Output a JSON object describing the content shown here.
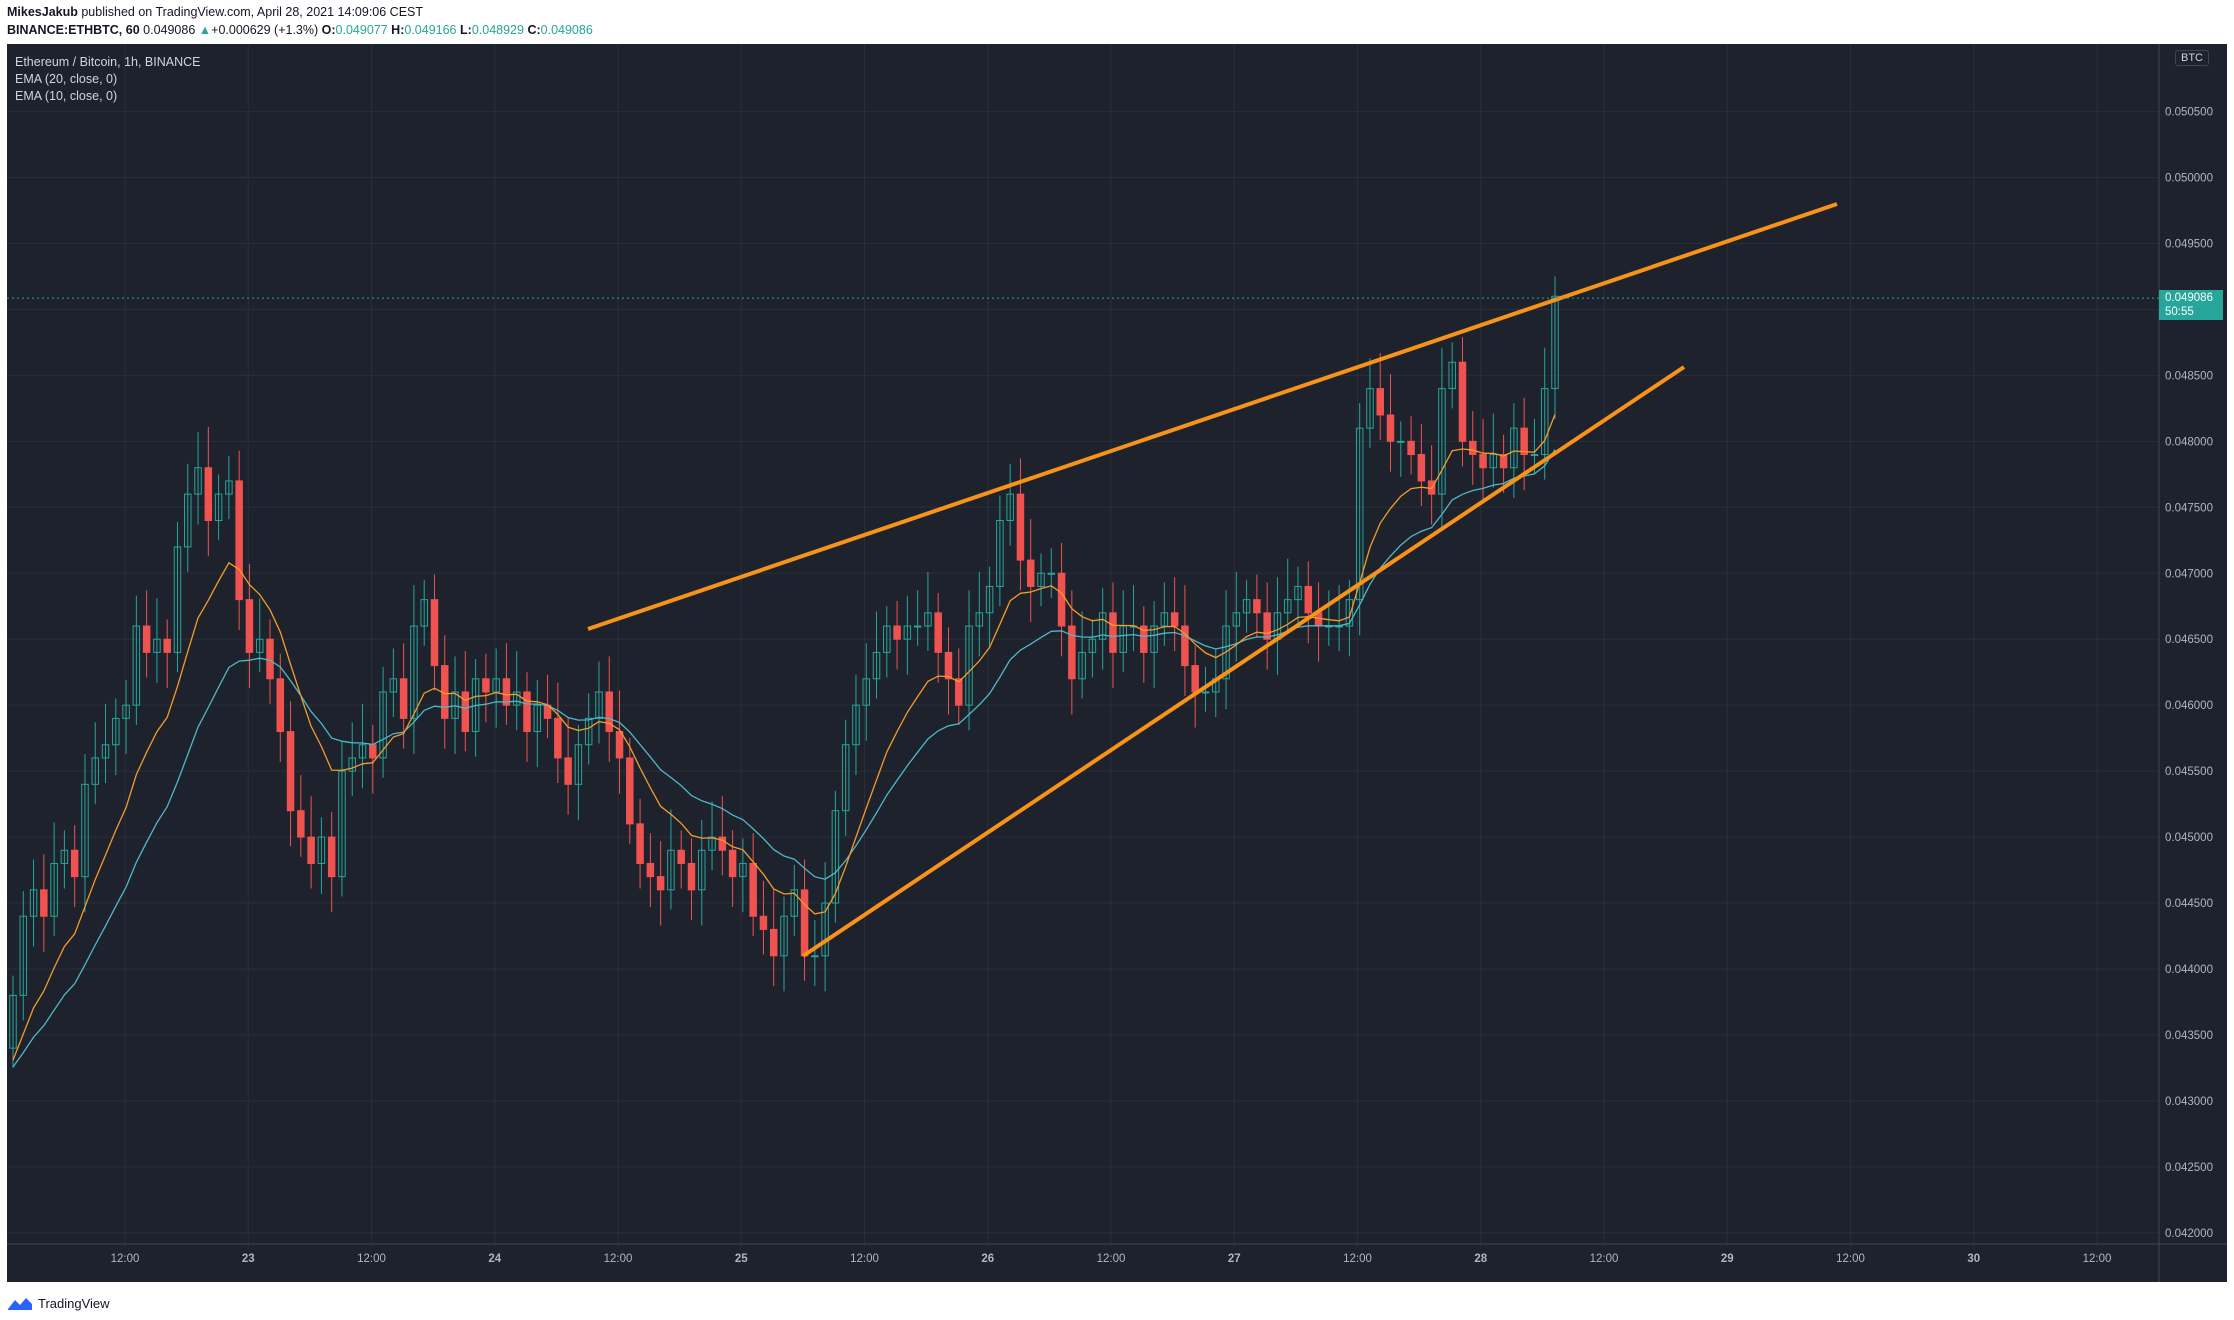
{
  "header": {
    "author": "MikesJakub",
    "published_text": " published on TradingView.com, April 28, 2021 14:09:06 CEST",
    "symbol": "BINANCE:ETHBTC, 60",
    "last": "0.049086",
    "change": "+0.000629 (+1.3%)",
    "o_label": "O:",
    "o_value": "0.049077",
    "h_label": "H:",
    "h_value": "0.049166",
    "l_label": "L:",
    "l_value": "0.048929",
    "c_label": "C:",
    "c_value": "0.049086"
  },
  "legend": {
    "title": "Ethereum / Bitcoin, 1h, BINANCE",
    "ema20": "EMA (20, close, 0)",
    "ema10": "EMA (10, close, 0)"
  },
  "price_badge": {
    "price": "0.049086",
    "countdown": "50:55"
  },
  "currency_badge": "BTC",
  "footer": {
    "brand": "TradingView"
  },
  "colors": {
    "up": "#26a69a",
    "down": "#ef5350",
    "ema20": "#4fb8c6",
    "ema10": "#f59b2b",
    "trendline": "#f7931a",
    "background": "#1e222d",
    "grid": "#2a2e39",
    "text": "#b2b5be"
  },
  "chart_data": {
    "type": "candlestick",
    "series_meta": [
      "Ethereum / Bitcoin, 1h, BINANCE",
      "EMA (20, close, 0)",
      "EMA (10, close, 0)"
    ],
    "y_ticks": [
      "0.050500",
      "0.050000",
      "0.049500",
      "0.049000",
      "0.048500",
      "0.048000",
      "0.047500",
      "0.047000",
      "0.046500",
      "0.046000",
      "0.045500",
      "0.045000",
      "0.044500",
      "0.044000",
      "0.043500",
      "0.043000",
      "0.042500",
      "0.042000"
    ],
    "ylim": [
      0.0419,
      0.0508
    ],
    "x_ticks": [
      "12:00",
      "23",
      "12:00",
      "24",
      "12:00",
      "25",
      "12:00",
      "26",
      "12:00",
      "27",
      "12:00",
      "28",
      "12:00",
      "29",
      "12:00",
      "30",
      "12:00"
    ],
    "x_bold": [
      "23",
      "24",
      "25",
      "26",
      "27",
      "28",
      "29",
      "30"
    ],
    "closes": [
      0.0438,
      0.0444,
      0.0446,
      0.0444,
      0.0448,
      0.0449,
      0.0447,
      0.0454,
      0.0456,
      0.0457,
      0.0459,
      0.046,
      0.0466,
      0.0464,
      0.0465,
      0.0464,
      0.0472,
      0.0476,
      0.0478,
      0.0474,
      0.0476,
      0.0477,
      0.0468,
      0.0464,
      0.0465,
      0.0462,
      0.0458,
      0.0452,
      0.045,
      0.0448,
      0.045,
      0.0447,
      0.0455,
      0.0456,
      0.0457,
      0.0456,
      0.0461,
      0.0462,
      0.0459,
      0.0466,
      0.0468,
      0.0463,
      0.0459,
      0.0461,
      0.0458,
      0.0462,
      0.0461,
      0.0462,
      0.046,
      0.0461,
      0.0458,
      0.046,
      0.0459,
      0.0456,
      0.0454,
      0.0457,
      0.0459,
      0.0461,
      0.0458,
      0.0456,
      0.0451,
      0.0448,
      0.0447,
      0.0446,
      0.0449,
      0.0448,
      0.0446,
      0.0449,
      0.045,
      0.0449,
      0.0447,
      0.0448,
      0.0444,
      0.0443,
      0.0441,
      0.0444,
      0.0446,
      0.0441,
      0.0441,
      0.0445,
      0.0452,
      0.0457,
      0.046,
      0.0462,
      0.0464,
      0.0466,
      0.0465,
      0.0466,
      0.0466,
      0.0467,
      0.0464,
      0.0462,
      0.046,
      0.0466,
      0.0467,
      0.0469,
      0.0474,
      0.0476,
      0.0471,
      0.0469,
      0.047,
      0.047,
      0.0466,
      0.0462,
      0.0464,
      0.0465,
      0.0467,
      0.0464,
      0.0466,
      0.0466,
      0.0464,
      0.0466,
      0.0467,
      0.0466,
      0.0463,
      0.0461,
      0.0461,
      0.0462,
      0.0466,
      0.0467,
      0.0468,
      0.0467,
      0.0465,
      0.0467,
      0.0468,
      0.0469,
      0.0467,
      0.0466,
      0.0466,
      0.0466,
      0.0468,
      0.0481,
      0.0484,
      0.0482,
      0.048,
      0.048,
      0.0479,
      0.0477,
      0.0476,
      0.0484,
      0.0486,
      0.048,
      0.0479,
      0.0478,
      0.0479,
      0.0478,
      0.0481,
      0.0479,
      0.0479,
      0.0484,
      0.0491
    ],
    "ema20_closes": "computed from closes",
    "pattern": "rising wedge (two trendlines)"
  }
}
